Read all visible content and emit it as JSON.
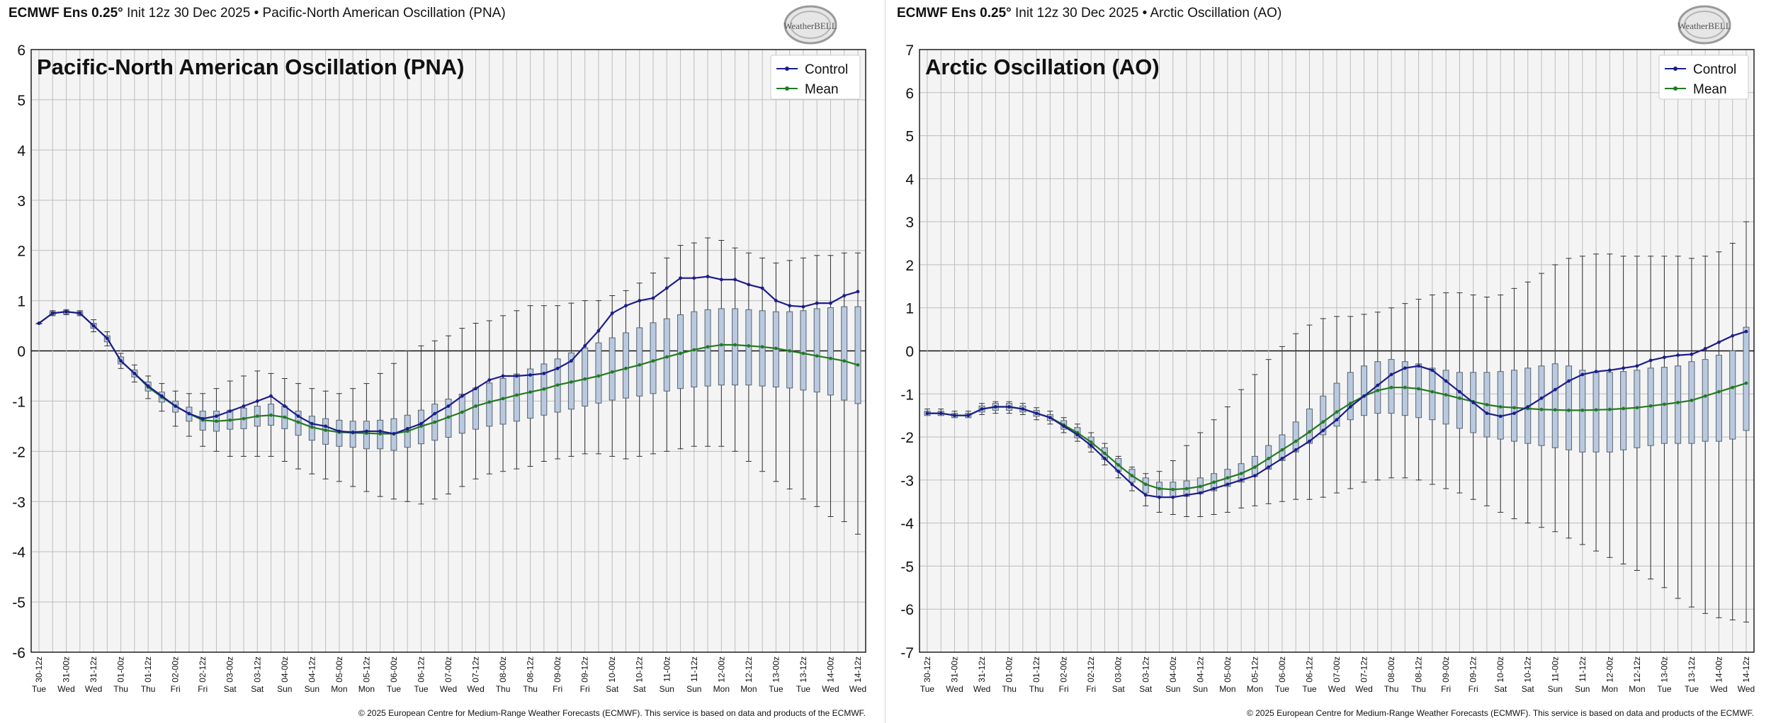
{
  "colors": {
    "control": "#1c1c8c",
    "mean": "#237a23",
    "box_fill": "#b9c9df",
    "box_stroke": "#5a6470",
    "plot_bg": "#f4f4f4",
    "grid": "#bdbdbd"
  },
  "logo": {
    "text": "WeatherBELL"
  },
  "footer_text": "© 2025 European Centre for Medium-Range Weather Forecasts (ECMWF). This service is based on data and products of the ECMWF.",
  "time_labels": [
    "30-12z",
    "31-00z",
    "31-12z",
    "01-00z",
    "01-12z",
    "02-00z",
    "02-12z",
    "03-00z",
    "03-12z",
    "04-00z",
    "04-12z",
    "05-00z",
    "05-12z",
    "06-00z",
    "06-12z",
    "07-00z",
    "07-12z",
    "08-00z",
    "08-12z",
    "09-00z",
    "09-12z",
    "10-00z",
    "10-12z",
    "11-00z",
    "11-12z",
    "12-00z",
    "12-12z",
    "13-00z",
    "13-12z",
    "14-00z",
    "14-12z"
  ],
  "day_labels": [
    "Tue",
    "Wed",
    "Wed",
    "Thu",
    "Thu",
    "Fri",
    "Fri",
    "Sat",
    "Sat",
    "Sun",
    "Sun",
    "Mon",
    "Mon",
    "Tue",
    "Tue",
    "Wed",
    "Wed",
    "Thu",
    "Thu",
    "Fri",
    "Fri",
    "Sat",
    "Sat",
    "Sun",
    "Sun",
    "Mon",
    "Mon",
    "Tue",
    "Tue",
    "Wed",
    "Wed"
  ],
  "panels": [
    {
      "header_model": "ECMWF Ens 0.25°",
      "header_rest": "Init 12z 30 Dec 2025 • Pacific-North American Oscillation (PNA)",
      "legend": [
        "Control",
        "Mean"
      ]
    },
    {
      "header_model": "ECMWF Ens 0.25°",
      "header_rest": "Init 12z 30 Dec 2025 • Arctic Oscillation (AO)",
      "legend": [
        "Control",
        "Mean"
      ]
    }
  ],
  "chart_data": [
    {
      "type": "box",
      "title": "Pacific-North American Oscillation (PNA)",
      "ylim": [
        -6,
        6
      ],
      "yticks": [
        6,
        5,
        4,
        3,
        2,
        1,
        0,
        -1,
        -2,
        -3,
        -4,
        -5,
        -6
      ],
      "x_step_hours": 6,
      "grid": true,
      "legend_position": "top-right",
      "series": [
        {
          "name": "Control",
          "values": [
            0.55,
            0.75,
            0.78,
            0.75,
            0.5,
            0.25,
            -0.2,
            -0.45,
            -0.7,
            -0.9,
            -1.1,
            -1.25,
            -1.35,
            -1.3,
            -1.2,
            -1.1,
            -1.0,
            -0.9,
            -1.1,
            -1.3,
            -1.45,
            -1.5,
            -1.6,
            -1.62,
            -1.6,
            -1.6,
            -1.65,
            -1.55,
            -1.45,
            -1.25,
            -1.1,
            -0.9,
            -0.75,
            -0.58,
            -0.5,
            -0.5,
            -0.48,
            -0.45,
            -0.35,
            -0.2,
            0.1,
            0.4,
            0.75,
            0.9,
            1.0,
            1.05,
            1.25,
            1.45,
            1.45,
            1.48,
            1.42,
            1.42,
            1.32,
            1.25,
            1.0,
            0.9,
            0.88,
            0.95,
            0.95,
            1.1,
            1.18
          ]
        },
        {
          "name": "Mean",
          "values": [
            0.55,
            0.75,
            0.78,
            0.75,
            0.5,
            0.25,
            -0.2,
            -0.45,
            -0.72,
            -0.92,
            -1.1,
            -1.25,
            -1.38,
            -1.4,
            -1.38,
            -1.35,
            -1.3,
            -1.28,
            -1.32,
            -1.42,
            -1.52,
            -1.58,
            -1.62,
            -1.63,
            -1.64,
            -1.65,
            -1.65,
            -1.6,
            -1.5,
            -1.42,
            -1.32,
            -1.22,
            -1.1,
            -1.02,
            -0.95,
            -0.88,
            -0.82,
            -0.76,
            -0.68,
            -0.62,
            -0.56,
            -0.5,
            -0.42,
            -0.35,
            -0.28,
            -0.2,
            -0.12,
            -0.05,
            0.02,
            0.08,
            0.12,
            0.12,
            0.1,
            0.08,
            0.05,
            0.0,
            -0.05,
            -0.1,
            -0.15,
            -0.2,
            -0.28
          ]
        },
        {
          "name": "Ensemble",
          "q1": [
            0.55,
            0.72,
            0.74,
            0.72,
            0.45,
            0.18,
            -0.26,
            -0.52,
            -0.8,
            -1.02,
            -1.22,
            -1.4,
            -1.58,
            -1.6,
            -1.56,
            -1.55,
            -1.5,
            -1.48,
            -1.55,
            -1.68,
            -1.78,
            -1.86,
            -1.9,
            -1.92,
            -1.95,
            -1.95,
            -1.98,
            -1.92,
            -1.85,
            -1.78,
            -1.72,
            -1.64,
            -1.56,
            -1.5,
            -1.46,
            -1.4,
            -1.34,
            -1.28,
            -1.22,
            -1.16,
            -1.1,
            -1.04,
            -0.98,
            -0.94,
            -0.9,
            -0.85,
            -0.8,
            -0.75,
            -0.72,
            -0.7,
            -0.68,
            -0.68,
            -0.68,
            -0.7,
            -0.72,
            -0.74,
            -0.78,
            -0.82,
            -0.88,
            -0.98,
            -1.05
          ],
          "q3": [
            0.55,
            0.78,
            0.8,
            0.78,
            0.55,
            0.3,
            -0.12,
            -0.38,
            -0.62,
            -0.82,
            -1.0,
            -1.12,
            -1.2,
            -1.2,
            -1.18,
            -1.14,
            -1.1,
            -1.06,
            -1.1,
            -1.2,
            -1.3,
            -1.35,
            -1.38,
            -1.4,
            -1.4,
            -1.38,
            -1.35,
            -1.28,
            -1.18,
            -1.06,
            -0.96,
            -0.86,
            -0.74,
            -0.64,
            -0.55,
            -0.46,
            -0.36,
            -0.26,
            -0.16,
            -0.04,
            0.06,
            0.16,
            0.26,
            0.36,
            0.46,
            0.56,
            0.64,
            0.72,
            0.78,
            0.82,
            0.84,
            0.84,
            0.82,
            0.8,
            0.78,
            0.78,
            0.8,
            0.84,
            0.86,
            0.88,
            0.88
          ],
          "wlo": [
            0.55,
            0.7,
            0.72,
            0.7,
            0.38,
            0.1,
            -0.35,
            -0.62,
            -0.95,
            -1.2,
            -1.5,
            -1.7,
            -1.9,
            -2.0,
            -2.1,
            -2.1,
            -2.1,
            -2.1,
            -2.2,
            -2.35,
            -2.45,
            -2.55,
            -2.6,
            -2.7,
            -2.8,
            -2.9,
            -2.95,
            -3.0,
            -3.05,
            -2.95,
            -2.85,
            -2.7,
            -2.55,
            -2.45,
            -2.4,
            -2.35,
            -2.3,
            -2.2,
            -2.15,
            -2.1,
            -2.05,
            -2.05,
            -2.1,
            -2.15,
            -2.1,
            -2.05,
            -2.0,
            -1.95,
            -1.9,
            -1.9,
            -1.9,
            -2.0,
            -2.2,
            -2.4,
            -2.6,
            -2.75,
            -2.95,
            -3.1,
            -3.3,
            -3.4,
            -3.65
          ],
          "whi": [
            0.55,
            0.8,
            0.82,
            0.8,
            0.62,
            0.38,
            -0.05,
            -0.28,
            -0.5,
            -0.65,
            -0.8,
            -0.85,
            -0.85,
            -0.75,
            -0.6,
            -0.5,
            -0.4,
            -0.45,
            -0.55,
            -0.65,
            -0.75,
            -0.8,
            -0.85,
            -0.75,
            -0.65,
            -0.45,
            -0.25,
            0.0,
            0.1,
            0.2,
            0.3,
            0.45,
            0.55,
            0.6,
            0.7,
            0.8,
            0.9,
            0.9,
            0.9,
            0.95,
            1.0,
            1.0,
            1.1,
            1.2,
            1.35,
            1.55,
            1.85,
            2.1,
            2.15,
            2.25,
            2.2,
            2.05,
            1.95,
            1.85,
            1.75,
            1.8,
            1.85,
            1.9,
            1.9,
            1.95,
            1.95
          ]
        }
      ]
    },
    {
      "type": "box",
      "title": "Arctic Oscillation (AO)",
      "ylim": [
        -7,
        7
      ],
      "yticks": [
        7,
        6,
        5,
        4,
        3,
        2,
        1,
        0,
        -1,
        -2,
        -3,
        -4,
        -5,
        -6,
        -7
      ],
      "x_step_hours": 6,
      "grid": true,
      "legend_position": "top-right",
      "series": [
        {
          "name": "Control",
          "values": [
            -1.45,
            -1.45,
            -1.5,
            -1.5,
            -1.35,
            -1.3,
            -1.3,
            -1.35,
            -1.45,
            -1.55,
            -1.75,
            -1.95,
            -2.2,
            -2.5,
            -2.8,
            -3.1,
            -3.35,
            -3.4,
            -3.4,
            -3.35,
            -3.3,
            -3.2,
            -3.1,
            -3.0,
            -2.9,
            -2.7,
            -2.5,
            -2.3,
            -2.1,
            -1.85,
            -1.6,
            -1.3,
            -1.05,
            -0.8,
            -0.55,
            -0.4,
            -0.35,
            -0.45,
            -0.7,
            -0.95,
            -1.2,
            -1.45,
            -1.52,
            -1.45,
            -1.3,
            -1.1,
            -0.9,
            -0.7,
            -0.55,
            -0.48,
            -0.45,
            -0.4,
            -0.35,
            -0.22,
            -0.15,
            -0.1,
            -0.08,
            0.05,
            0.2,
            0.35,
            0.45
          ]
        },
        {
          "name": "Mean",
          "values": [
            -1.45,
            -1.45,
            -1.5,
            -1.5,
            -1.35,
            -1.3,
            -1.3,
            -1.35,
            -1.45,
            -1.55,
            -1.72,
            -1.9,
            -2.12,
            -2.38,
            -2.65,
            -2.9,
            -3.1,
            -3.2,
            -3.22,
            -3.2,
            -3.15,
            -3.05,
            -2.95,
            -2.85,
            -2.7,
            -2.5,
            -2.3,
            -2.1,
            -1.88,
            -1.65,
            -1.42,
            -1.22,
            -1.05,
            -0.92,
            -0.85,
            -0.85,
            -0.88,
            -0.95,
            -1.02,
            -1.1,
            -1.18,
            -1.25,
            -1.3,
            -1.32,
            -1.34,
            -1.36,
            -1.37,
            -1.38,
            -1.38,
            -1.37,
            -1.36,
            -1.34,
            -1.32,
            -1.28,
            -1.24,
            -1.2,
            -1.15,
            -1.05,
            -0.95,
            -0.85,
            -0.75
          ]
        },
        {
          "name": "Ensemble",
          "q1": [
            -1.5,
            -1.5,
            -1.55,
            -1.55,
            -1.42,
            -1.38,
            -1.38,
            -1.42,
            -1.52,
            -1.62,
            -1.82,
            -2.02,
            -2.25,
            -2.52,
            -2.8,
            -3.05,
            -3.3,
            -3.4,
            -3.4,
            -3.38,
            -3.32,
            -3.25,
            -3.15,
            -3.05,
            -2.92,
            -2.75,
            -2.55,
            -2.35,
            -2.15,
            -1.95,
            -1.75,
            -1.6,
            -1.5,
            -1.45,
            -1.45,
            -1.5,
            -1.55,
            -1.6,
            -1.7,
            -1.8,
            -1.9,
            -2.0,
            -2.05,
            -2.1,
            -2.15,
            -2.2,
            -2.25,
            -2.3,
            -2.35,
            -2.35,
            -2.35,
            -2.3,
            -2.25,
            -2.2,
            -2.15,
            -2.15,
            -2.15,
            -2.1,
            -2.1,
            -2.05,
            -1.85
          ],
          "q3": [
            -1.4,
            -1.4,
            -1.45,
            -1.45,
            -1.28,
            -1.22,
            -1.22,
            -1.28,
            -1.38,
            -1.48,
            -1.62,
            -1.78,
            -2.0,
            -2.25,
            -2.5,
            -2.75,
            -2.95,
            -3.05,
            -3.05,
            -3.02,
            -2.95,
            -2.85,
            -2.75,
            -2.62,
            -2.45,
            -2.2,
            -1.95,
            -1.65,
            -1.35,
            -1.05,
            -0.75,
            -0.5,
            -0.35,
            -0.25,
            -0.2,
            -0.25,
            -0.3,
            -0.4,
            -0.45,
            -0.5,
            -0.5,
            -0.5,
            -0.48,
            -0.45,
            -0.4,
            -0.35,
            -0.3,
            -0.35,
            -0.45,
            -0.5,
            -0.5,
            -0.48,
            -0.45,
            -0.4,
            -0.38,
            -0.35,
            -0.25,
            -0.2,
            -0.1,
            0.0,
            0.55
          ],
          "wlo": [
            -1.5,
            -1.5,
            -1.55,
            -1.55,
            -1.48,
            -1.45,
            -1.45,
            -1.48,
            -1.6,
            -1.7,
            -1.9,
            -2.1,
            -2.35,
            -2.65,
            -2.95,
            -3.25,
            -3.6,
            -3.75,
            -3.8,
            -3.85,
            -3.85,
            -3.8,
            -3.75,
            -3.65,
            -3.6,
            -3.55,
            -3.5,
            -3.45,
            -3.45,
            -3.4,
            -3.3,
            -3.2,
            -3.05,
            -3.0,
            -2.95,
            -2.95,
            -3.0,
            -3.1,
            -3.2,
            -3.3,
            -3.45,
            -3.6,
            -3.75,
            -3.9,
            -4.0,
            -4.1,
            -4.2,
            -4.35,
            -4.5,
            -4.65,
            -4.8,
            -4.95,
            -5.1,
            -5.3,
            -5.5,
            -5.75,
            -5.95,
            -6.1,
            -6.2,
            -6.25,
            -6.3
          ],
          "whi": [
            -1.35,
            -1.35,
            -1.4,
            -1.4,
            -1.22,
            -1.18,
            -1.18,
            -1.22,
            -1.32,
            -1.4,
            -1.55,
            -1.7,
            -1.9,
            -2.15,
            -2.45,
            -2.7,
            -2.85,
            -2.8,
            -2.55,
            -2.2,
            -1.9,
            -1.6,
            -1.3,
            -0.9,
            -0.55,
            -0.2,
            0.1,
            0.4,
            0.6,
            0.75,
            0.8,
            0.8,
            0.85,
            0.9,
            1.0,
            1.1,
            1.2,
            1.3,
            1.35,
            1.35,
            1.3,
            1.25,
            1.3,
            1.45,
            1.6,
            1.8,
            2.0,
            2.15,
            2.2,
            2.25,
            2.25,
            2.2,
            2.2,
            2.2,
            2.2,
            2.2,
            2.15,
            2.2,
            2.3,
            2.5,
            3.0
          ]
        }
      ]
    }
  ]
}
